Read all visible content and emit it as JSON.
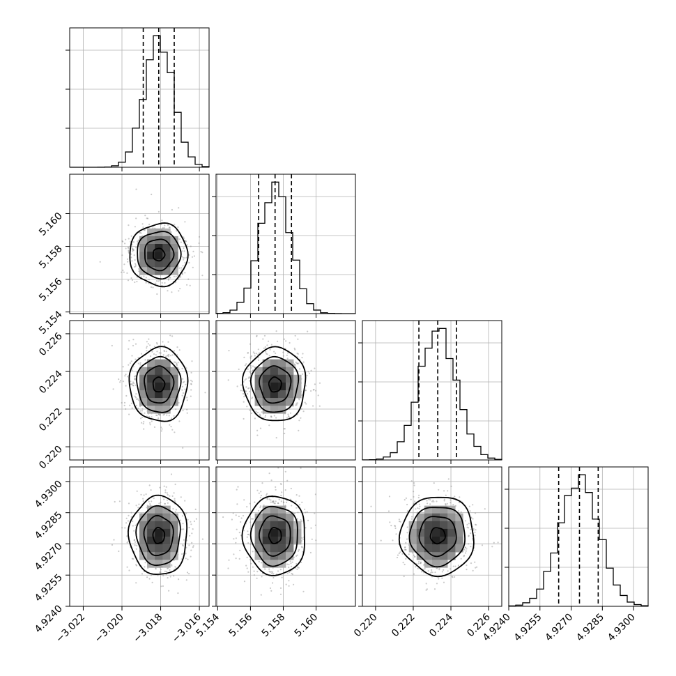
{
  "chart_data": {
    "type": "corner",
    "grid": true,
    "histogram_bins": 20,
    "quantiles": [
      0.16,
      0.5,
      0.84
    ],
    "contour_levels_sigma": [
      0.5,
      1.0,
      1.5,
      2.0
    ],
    "colors": {
      "line": "#000000",
      "scatter": "#8a8a8a",
      "grid": "#b0b0b0",
      "density_dark": "#222222",
      "density_light": "#f2f2f2"
    },
    "parameters": [
      {
        "label": "",
        "median": -3.0181,
        "sigma": 0.00075,
        "quantile_values": [
          -3.0189,
          -3.0181,
          -3.0173
        ],
        "range": [
          -3.0227,
          -3.0155
        ],
        "ticks": [
          -3.022,
          -3.02,
          -3.018,
          -3.016
        ],
        "tick_labels": [
          "−3.022",
          "−3.020",
          "−3.018",
          "−3.016"
        ]
      },
      {
        "label": "",
        "median": 5.1575,
        "sigma": 0.00095,
        "quantile_values": [
          5.1565,
          5.1575,
          5.1585
        ],
        "range": [
          5.1539,
          5.1624
        ],
        "ticks": [
          5.154,
          5.156,
          5.158,
          5.16
        ],
        "tick_labels": [
          "5.154",
          "5.156",
          "5.158",
          "5.160"
        ]
      },
      {
        "label": "",
        "median": 0.2233,
        "sigma": 0.00098,
        "quantile_values": [
          0.2223,
          0.2233,
          0.2243
        ],
        "range": [
          0.2193,
          0.2267
        ],
        "ticks": [
          0.22,
          0.222,
          0.224,
          0.226
        ],
        "tick_labels": [
          "0.220",
          "0.222",
          "0.224",
          "0.226"
        ]
      },
      {
        "label": "",
        "median": 4.9274,
        "sigma": 0.00095,
        "quantile_values": [
          4.9264,
          4.9274,
          4.9283
        ],
        "range": [
          4.924,
          4.9307
        ],
        "ticks": [
          4.924,
          4.9255,
          4.927,
          4.9285,
          4.93
        ],
        "tick_labels": [
          "4.9240",
          "4.9255",
          "4.9270",
          "4.9285",
          "4.9300"
        ]
      }
    ]
  }
}
